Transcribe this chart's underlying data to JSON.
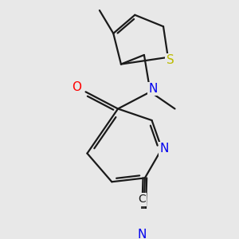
{
  "background_color": "#e8e8e8",
  "bond_color": "#1a1a1a",
  "bond_width": 1.6,
  "bg_hex": "#e8e8e8",
  "atom_colors": {
    "O": "#ff0000",
    "N": "#0000ee",
    "S": "#bbbb00",
    "C": "#1a1a1a"
  },
  "fontsize": 11
}
